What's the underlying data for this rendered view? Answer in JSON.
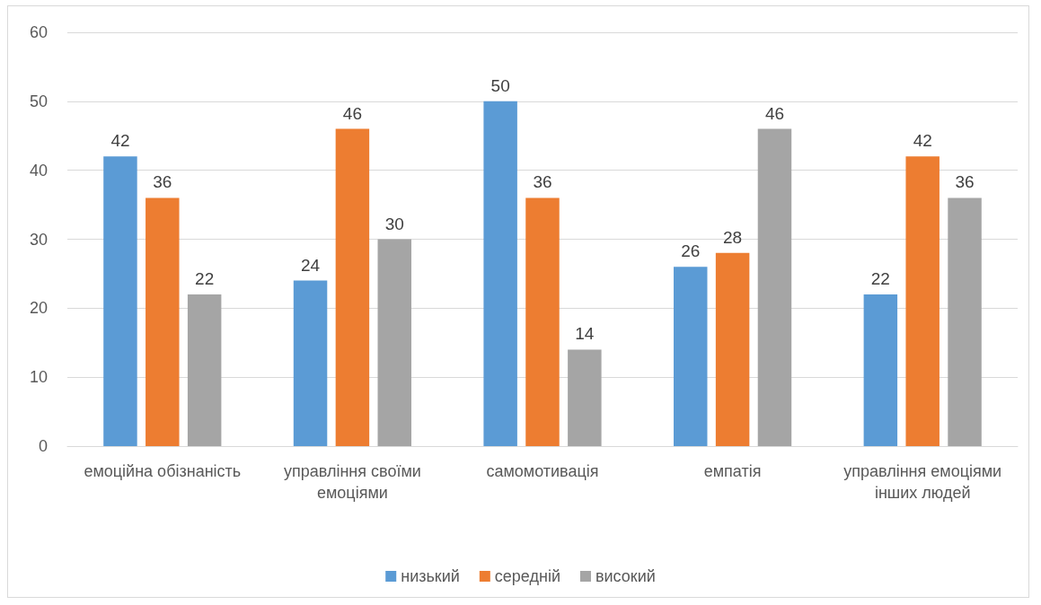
{
  "chart_data": {
    "type": "bar",
    "categories": [
      "емоційна обізнаність",
      "управління своїми емоціями",
      "самомотивація",
      "емпатія",
      "управління емоціями інших людей"
    ],
    "series": [
      {
        "name": "низький",
        "color": "#5b9bd5",
        "values": [
          42,
          24,
          50,
          26,
          22
        ]
      },
      {
        "name": "середній",
        "color": "#ed7d31",
        "values": [
          36,
          46,
          36,
          28,
          42
        ]
      },
      {
        "name": "високий",
        "color": "#a5a5a5",
        "values": [
          22,
          30,
          14,
          46,
          36
        ]
      }
    ],
    "ylim": [
      0,
      60
    ],
    "yticks": [
      0,
      10,
      20,
      30,
      40,
      50,
      60
    ],
    "grid": "y",
    "legend": "bottom",
    "data_labels": true
  }
}
